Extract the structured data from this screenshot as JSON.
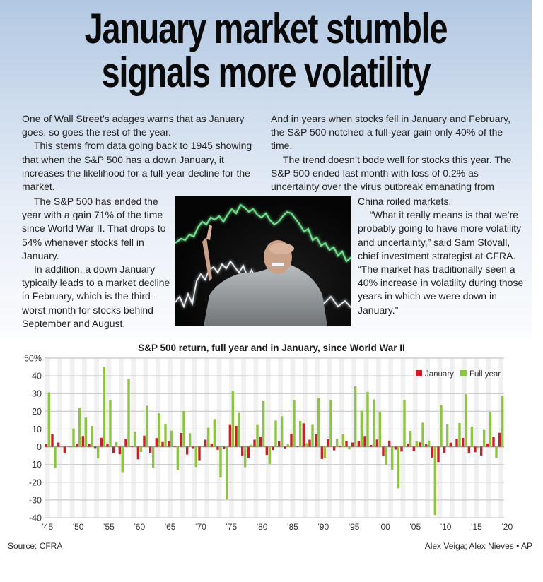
{
  "headline": {
    "line1": "January market stumble",
    "line2": "signals more volatility"
  },
  "article": {
    "left_top": [
      "One of Wall Street’s adages warns that as January goes, so goes the rest of the year.",
      "This stems from data going back to 1945 showing that when the S&P 500 has a down January, it increases the likelihood for a full-year decline for the market."
    ],
    "left_bottom": [
      "The S&P 500 has ended the year with a gain 71% of the time since World War II. That drops to 54% whenever stocks fell in January.",
      "In addition, a down January typically leads to a market decline in February, which is the third-worst month for stocks behind September and August."
    ],
    "right_top": [
      "And in years when stocks fell in January and February, the S&P 500 notched a full-year gain only 40% of the time.",
      "The trend doesn’t bode well for stocks this year. The S&P 500 ended last month with loss of 0.2% as uncertainty over the virus outbreak emanating from"
    ],
    "right_bottom": [
      "China roiled markets.",
      "“What it really means is that we’re probably going to have more volatility and uncertainty,” said Sam Stovall, chief investment strategist at CFRA. “The market has traditionally seen a 40% increase in volatility during those years in which we were down in January.”"
    ]
  },
  "photo": {
    "description": "Stressed man covering his eyes against a dark background with glowing green and white stock-chart lines"
  },
  "colors": {
    "january": "#c8202a",
    "full_year": "#8cc63f",
    "gridline": "#c8c8c8",
    "band": "#f0f0f0"
  },
  "chart_data": {
    "type": "bar",
    "title": "S&P 500 return, full year and in January, since World War II",
    "xlabel": "",
    "ylabel": "",
    "ylim": [
      -40,
      50
    ],
    "yticks": [
      "50%",
      "40",
      "30",
      "20",
      "10",
      "0",
      "-10",
      "-20",
      "-30",
      "-40"
    ],
    "xtick_labels": [
      "'45",
      "'50",
      "'55",
      "'60",
      "'65",
      "'70",
      "'75",
      "'80",
      "'85",
      "'90",
      "'95",
      "'00",
      "'05",
      "'10",
      "'15",
      "'20"
    ],
    "legend": [
      "January",
      "Full year"
    ],
    "legend_position": "upper right",
    "grid": true,
    "categories": [
      1945,
      1946,
      1947,
      1948,
      1949,
      1950,
      1951,
      1952,
      1953,
      1954,
      1955,
      1956,
      1957,
      1958,
      1959,
      1960,
      1961,
      1962,
      1963,
      1964,
      1965,
      1966,
      1967,
      1968,
      1969,
      1970,
      1971,
      1972,
      1973,
      1974,
      1975,
      1976,
      1977,
      1978,
      1979,
      1980,
      1981,
      1982,
      1983,
      1984,
      1985,
      1986,
      1987,
      1988,
      1989,
      1990,
      1991,
      1992,
      1993,
      1994,
      1995,
      1996,
      1997,
      1998,
      1999,
      2000,
      2001,
      2002,
      2003,
      2004,
      2005,
      2006,
      2007,
      2008,
      2009,
      2010,
      2011,
      2012,
      2013,
      2014,
      2015,
      2016,
      2017,
      2018,
      2019
    ],
    "series": [
      {
        "name": "January",
        "values": [
          1.4,
          7.1,
          2.4,
          -3.8,
          0.1,
          1.7,
          6.1,
          1.6,
          -0.7,
          5.1,
          1.8,
          -3.6,
          -4.2,
          4.3,
          0.4,
          -7.1,
          6.3,
          -3.8,
          4.9,
          2.7,
          3.3,
          0.5,
          7.8,
          -4.4,
          -0.8,
          -7.6,
          4.0,
          1.8,
          -1.7,
          -1.0,
          12.3,
          11.8,
          -5.1,
          -6.2,
          4.0,
          5.8,
          -4.6,
          -1.8,
          3.3,
          -0.9,
          7.4,
          0.2,
          13.2,
          4.0,
          7.1,
          -6.9,
          4.2,
          -2.0,
          0.7,
          3.3,
          2.4,
          3.3,
          6.1,
          1.0,
          4.1,
          -5.1,
          3.5,
          -1.6,
          -2.7,
          1.7,
          -2.5,
          2.5,
          1.4,
          -6.1,
          -8.6,
          -3.7,
          2.3,
          4.4,
          5.0,
          -3.6,
          -3.1,
          -5.1,
          1.8,
          5.6,
          7.9
        ]
      },
      {
        "name": "Full year",
        "values": [
          30.7,
          -11.9,
          0.0,
          0.0,
          10.3,
          21.8,
          16.5,
          11.8,
          -6.6,
          45.0,
          26.4,
          2.6,
          -14.3,
          38.1,
          8.5,
          -3.0,
          23.1,
          -11.8,
          18.9,
          13.0,
          9.1,
          -13.1,
          20.1,
          7.7,
          -11.4,
          0.1,
          10.8,
          15.6,
          -17.4,
          -29.7,
          31.5,
          19.1,
          -11.5,
          1.1,
          12.3,
          25.8,
          -9.7,
          14.8,
          17.3,
          1.4,
          26.3,
          14.6,
          2.0,
          12.4,
          27.3,
          -6.6,
          26.3,
          4.5,
          7.1,
          -1.5,
          34.1,
          20.3,
          31.0,
          26.7,
          19.5,
          -10.1,
          -13.0,
          -23.4,
          26.4,
          9.0,
          3.0,
          13.6,
          3.5,
          -38.5,
          23.5,
          12.8,
          0.0,
          13.4,
          29.6,
          11.4,
          -0.7,
          9.5,
          19.4,
          -6.2,
          28.9
        ]
      }
    ]
  },
  "footer": {
    "source": "Source: CFRA",
    "credit": "Alex Veiga; Alex Nieves • AP"
  }
}
